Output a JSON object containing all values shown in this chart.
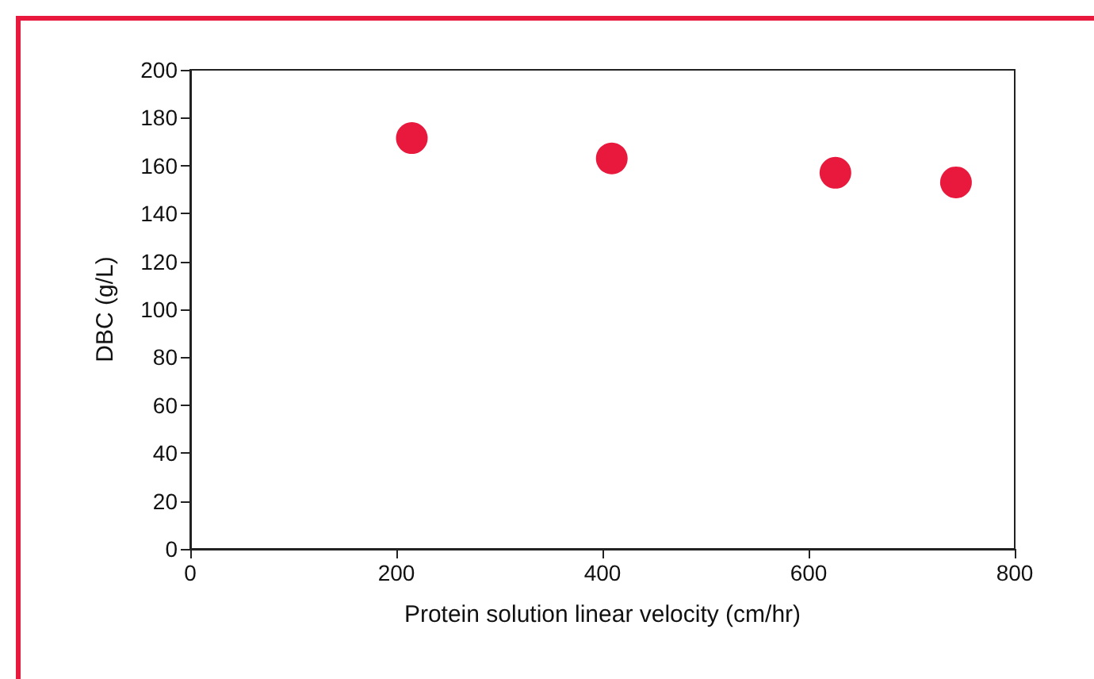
{
  "chart_data": {
    "type": "scatter",
    "xlabel": "Protein solution linear velocity (cm/hr)",
    "ylabel": "DBC (g/L)",
    "x": [
      215,
      409,
      626,
      743
    ],
    "series": [
      {
        "color": "#e8193c",
        "values": [
          171.5,
          163,
          157,
          153
        ]
      }
    ],
    "xlim": [
      0,
      800
    ],
    "xticks": [
      0,
      200,
      400,
      600,
      800
    ],
    "ylim": [
      0,
      200
    ],
    "yticks": [
      0,
      20,
      40,
      60,
      80,
      100,
      120,
      140,
      160,
      180,
      200
    ],
    "grid": false,
    "marker": "circle"
  }
}
